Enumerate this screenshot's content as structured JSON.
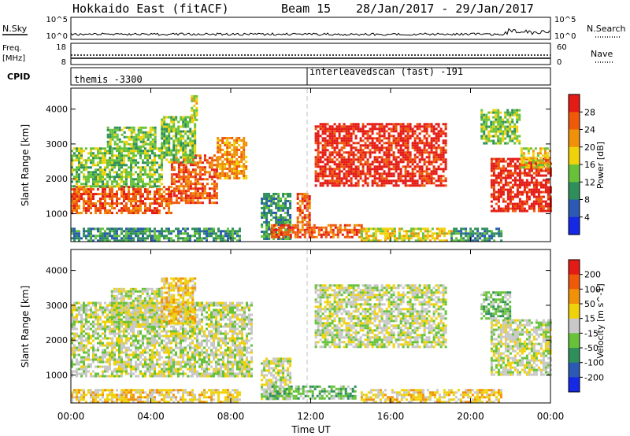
{
  "header": {
    "radar": "Hokkaido East (fitACF)",
    "beam": "Beam 15",
    "dates": "28/Jan/2017 - 29/Jan/2017"
  },
  "strips": {
    "nsky": {
      "label": "N.Sky",
      "tick_top": "10^5",
      "tick_bottom": "10^0"
    },
    "nsearch": {
      "label": "N.Search",
      "tick_top": "10^5",
      "tick_bottom": "10^0"
    },
    "freq": {
      "label_line1": "Freq.",
      "label_line2": "[MHz]",
      "tick_top": "18",
      "tick_bottom": "8"
    },
    "nave": {
      "label": "Nave",
      "tick_top": "60",
      "tick_bottom": "0"
    },
    "cpid": {
      "label": "CPID",
      "mode1": "themis -3300",
      "mode2": "interleavedscan (fast) -191"
    }
  },
  "axes": {
    "ylabel": "Slant Range [km]",
    "xlabel": "Time UT",
    "yticks": [
      "1000",
      "2000",
      "3000",
      "4000"
    ],
    "xticks": [
      "00:00",
      "04:00",
      "08:00",
      "12:00",
      "16:00",
      "20:00",
      "00:00"
    ]
  },
  "chart_data": [
    {
      "type": "heatmap",
      "name": "Power",
      "colorbar_label": "Power [dB]",
      "colorbar_ticks": [
        "4",
        "8",
        "12",
        "16",
        "20",
        "24",
        "28"
      ],
      "colorbar_colors": [
        "#1428e6",
        "#2a5ab4",
        "#2f8f5a",
        "#67c23a",
        "#f0d20a",
        "#f0910a",
        "#ee5a0a",
        "#e41a14"
      ],
      "ylim": [
        200,
        4600
      ],
      "xlim_hours": [
        0,
        24
      ],
      "regions": [
        {
          "t": [
            0.0,
            5.0
          ],
          "r": [
            1000,
            1800
          ],
          "level": 6
        },
        {
          "t": [
            5.0,
            7.3
          ],
          "r": [
            1300,
            2700
          ],
          "level": 6
        },
        {
          "t": [
            7.3,
            8.8
          ],
          "r": [
            2000,
            3200
          ],
          "level": 5
        },
        {
          "t": [
            0.0,
            4.5
          ],
          "r": [
            1800,
            2900
          ],
          "level": 3
        },
        {
          "t": [
            1.8,
            4.2
          ],
          "r": [
            2900,
            3500
          ],
          "level": 3
        },
        {
          "t": [
            4.5,
            6.2
          ],
          "r": [
            2500,
            3800
          ],
          "level": 3
        },
        {
          "t": [
            6.0,
            6.3
          ],
          "r": [
            3700,
            4400
          ],
          "level": 4
        },
        {
          "t": [
            0.0,
            8.5
          ],
          "r": [
            250,
            600
          ],
          "level": 2
        },
        {
          "t": [
            9.5,
            11.0
          ],
          "r": [
            300,
            1600
          ],
          "level": 2
        },
        {
          "t": [
            10.0,
            14.5
          ],
          "r": [
            300,
            700
          ],
          "level": 6
        },
        {
          "t": [
            11.3,
            12.0
          ],
          "r": [
            700,
            1600
          ],
          "level": 6
        },
        {
          "t": [
            12.2,
            18.8
          ],
          "r": [
            1800,
            3600
          ],
          "level": 7
        },
        {
          "t": [
            14.5,
            19.0
          ],
          "r": [
            250,
            600
          ],
          "level": 4
        },
        {
          "t": [
            19.0,
            21.5
          ],
          "r": [
            250,
            600
          ],
          "level": 2
        },
        {
          "t": [
            21.0,
            24.0
          ],
          "r": [
            1100,
            2600
          ],
          "level": 7
        },
        {
          "t": [
            20.5,
            22.5
          ],
          "r": [
            3000,
            4000
          ],
          "level": 3
        },
        {
          "t": [
            22.5,
            24.0
          ],
          "r": [
            2300,
            2900
          ],
          "level": 4
        }
      ]
    },
    {
      "type": "heatmap",
      "name": "Velocity",
      "colorbar_label": "Velocity [m s^-1]",
      "colorbar_ticks": [
        "200",
        "100",
        "50",
        "15",
        "-15",
        "-50",
        "-100",
        "-200"
      ],
      "colorbar_colors": [
        "#1428e6",
        "#2a5ab4",
        "#2f8f5a",
        "#67c23a",
        "#c8c8c8",
        "#f0d20a",
        "#f0910a",
        "#ee5a0a",
        "#e41a14"
      ],
      "ylim": [
        200,
        4600
      ],
      "xlim_hours": [
        0,
        24
      ],
      "regions": [
        {
          "t": [
            0.0,
            9.0
          ],
          "r": [
            1000,
            3100
          ],
          "level": 4
        },
        {
          "t": [
            2.0,
            4.5
          ],
          "r": [
            2400,
            3500
          ],
          "level": 4
        },
        {
          "t": [
            4.5,
            6.2
          ],
          "r": [
            2500,
            3800
          ],
          "level": 5
        },
        {
          "t": [
            0.0,
            8.5
          ],
          "r": [
            250,
            600
          ],
          "level": 5
        },
        {
          "t": [
            9.5,
            11.0
          ],
          "r": [
            300,
            1500
          ],
          "level": 4
        },
        {
          "t": [
            9.8,
            14.2
          ],
          "r": [
            300,
            700
          ],
          "level": 3
        },
        {
          "t": [
            12.2,
            18.8
          ],
          "r": [
            1800,
            3600
          ],
          "level": 4
        },
        {
          "t": [
            14.5,
            21.5
          ],
          "r": [
            250,
            600
          ],
          "level": 5
        },
        {
          "t": [
            21.0,
            24.0
          ],
          "r": [
            1000,
            2600
          ],
          "level": 4
        },
        {
          "t": [
            20.5,
            22.0
          ],
          "r": [
            2600,
            3400
          ],
          "level": 3
        }
      ]
    }
  ]
}
